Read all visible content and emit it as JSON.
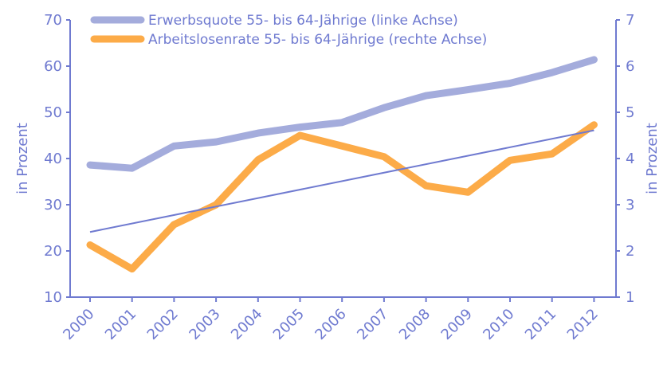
{
  "chart_data": {
    "type": "line",
    "categories": [
      "2000",
      "2001",
      "2002",
      "2003",
      "2004",
      "2005",
      "2006",
      "2007",
      "2008",
      "2009",
      "2010",
      "2011",
      "2012"
    ],
    "series": [
      {
        "name": "Erwerbsquote 55- bis 64-Jährige (linke Achse)",
        "axis": "left",
        "color": "#a4acdc",
        "values": [
          38.6,
          37.9,
          42.7,
          43.6,
          45.5,
          46.8,
          47.8,
          51.0,
          53.6,
          54.9,
          56.3,
          58.6,
          61.4
        ]
      },
      {
        "name": "Arbeitslosenrate 55- bis 64-Jährige (rechte Achse)",
        "axis": "right",
        "color": "#fcab48",
        "values": [
          2.13,
          1.61,
          2.57,
          3.0,
          3.97,
          4.5,
          4.27,
          4.04,
          3.41,
          3.27,
          3.96,
          4.1,
          4.73
        ]
      }
    ],
    "trendline": {
      "color": "#6f7ad0",
      "axis": "left",
      "start": 24.1,
      "end": 46.1
    },
    "y_left": {
      "label": "in Prozent",
      "ylim": [
        10,
        70
      ],
      "ticks": [
        "10",
        "20",
        "30",
        "40",
        "50",
        "60",
        "70"
      ]
    },
    "y_right": {
      "label": "in Prozent",
      "ylim": [
        1,
        7
      ],
      "ticks": [
        "1",
        "2",
        "3",
        "4",
        "5",
        "6",
        "7"
      ]
    },
    "axis_color": "#6f7ad0",
    "grid": false,
    "legend_position": "top"
  }
}
